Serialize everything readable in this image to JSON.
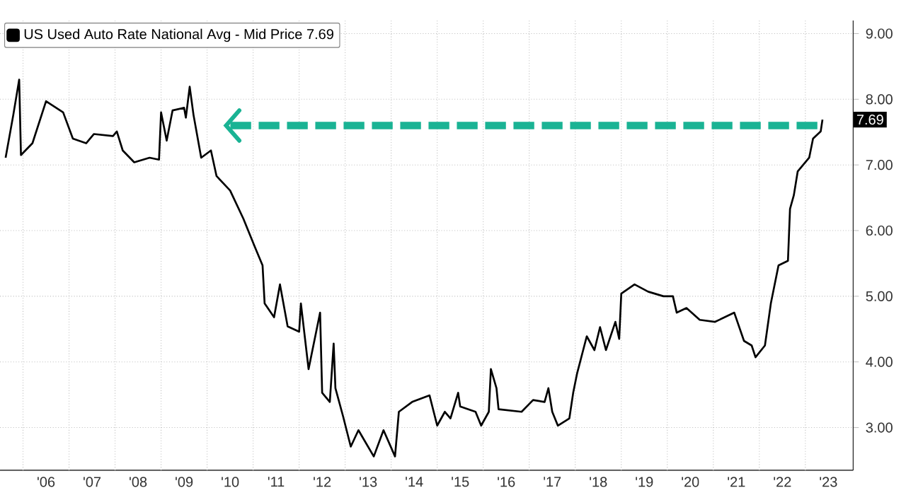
{
  "chart_data": {
    "type": "line",
    "x": [
      "2005-08-15",
      "2005-10-15",
      "2005-12-01",
      "2005-12-15",
      "2006-03-15",
      "2006-07-01",
      "2006-11-15",
      "2007-02-01",
      "2007-05-15",
      "2007-07-15",
      "2007-12-15",
      "2008-01-15",
      "2008-03-01",
      "2008-06-01",
      "2008-10-01",
      "2008-12-15",
      "2009-01-01",
      "2009-02-15",
      "2009-04-01",
      "2009-07-01",
      "2009-07-15",
      "2009-08-15",
      "2009-09-15",
      "2009-11-15",
      "2010-02-01",
      "2010-03-15",
      "2010-07-01",
      "2010-10-15",
      "2011-01-15",
      "2011-03-15",
      "2011-04-01",
      "2011-06-15",
      "2011-08-01",
      "2011-10-01",
      "2012-01-01",
      "2012-01-15",
      "2012-03-15",
      "2012-06-15",
      "2012-07-01",
      "2012-09-01",
      "2012-10-01",
      "2012-10-15",
      "2012-12-15",
      "2013-02-15",
      "2013-04-15",
      "2013-08-15",
      "2013-11-01",
      "2014-02-01",
      "2014-03-01",
      "2014-06-15",
      "2014-11-01",
      "2015-01-01",
      "2015-03-01",
      "2015-04-15",
      "2015-06-15",
      "2015-07-01",
      "2015-11-01",
      "2015-12-15",
      "2016-02-15",
      "2016-03-01",
      "2016-04-15",
      "2016-05-01",
      "2016-11-01",
      "2017-02-01",
      "2017-05-01",
      "2017-06-01",
      "2017-07-01",
      "2017-08-15",
      "2017-11-15",
      "2017-12-15",
      "2018-01-15",
      "2018-04-01",
      "2018-06-01",
      "2018-07-15",
      "2018-09-01",
      "2018-11-15",
      "2018-12-15",
      "2019-01-01",
      "2019-04-15",
      "2019-08-01",
      "2019-12-01",
      "2020-02-15",
      "2020-03-15",
      "2020-06-01",
      "2020-09-15",
      "2021-01-15",
      "2021-06-15",
      "2021-09-01",
      "2021-11-01",
      "2021-12-01",
      "2022-02-15",
      "2022-04-01",
      "2022-06-01",
      "2022-08-15",
      "2022-09-01",
      "2022-10-01",
      "2022-11-01",
      "2023-02-01",
      "2023-03-01",
      "2023-05-01",
      "2023-05-15"
    ],
    "series": [
      {
        "name": "US Used Auto Rate National Avg - Mid Price 7.69",
        "color": "#000000",
        "values": [
          7.11,
          7.76,
          8.3,
          7.15,
          7.33,
          7.97,
          7.8,
          7.4,
          7.33,
          7.47,
          7.44,
          7.51,
          7.22,
          7.04,
          7.11,
          7.08,
          7.8,
          7.37,
          7.83,
          7.87,
          7.72,
          8.19,
          7.76,
          7.11,
          7.22,
          6.83,
          6.61,
          6.18,
          5.75,
          5.47,
          4.89,
          4.68,
          5.18,
          4.54,
          4.46,
          4.89,
          3.89,
          4.75,
          3.53,
          3.39,
          4.28,
          3.6,
          3.17,
          2.71,
          2.96,
          2.56,
          2.96,
          2.56,
          3.24,
          3.39,
          3.49,
          3.03,
          3.24,
          3.14,
          3.53,
          3.32,
          3.24,
          3.03,
          3.24,
          3.89,
          3.6,
          3.28,
          3.24,
          3.42,
          3.39,
          3.6,
          3.24,
          3.03,
          3.14,
          3.53,
          3.82,
          4.39,
          4.18,
          4.53,
          4.18,
          4.61,
          4.35,
          5.04,
          5.18,
          5.07,
          5.0,
          5.0,
          4.75,
          4.82,
          4.64,
          4.61,
          4.75,
          4.32,
          4.25,
          4.07,
          4.25,
          4.89,
          5.47,
          5.54,
          6.33,
          6.54,
          6.9,
          7.11,
          7.4,
          7.51,
          7.69
        ]
      }
    ],
    "xlim": [
      "2005-07-01",
      "2024-01-15"
    ],
    "ylim": [
      2.35,
      9.2
    ],
    "xticks": [
      {
        "value": "2006-01-01",
        "label": null
      },
      {
        "value": "2006-07-01",
        "label": "'06"
      },
      {
        "value": "2007-01-01",
        "label": null
      },
      {
        "value": "2007-07-01",
        "label": "'07"
      },
      {
        "value": "2008-01-01",
        "label": null
      },
      {
        "value": "2008-07-01",
        "label": "'08"
      },
      {
        "value": "2009-01-01",
        "label": null
      },
      {
        "value": "2009-07-01",
        "label": "'09"
      },
      {
        "value": "2010-01-01",
        "label": null
      },
      {
        "value": "2010-07-01",
        "label": "'10"
      },
      {
        "value": "2011-01-01",
        "label": null
      },
      {
        "value": "2011-07-01",
        "label": "'11"
      },
      {
        "value": "2012-01-01",
        "label": null
      },
      {
        "value": "2012-07-01",
        "label": "'12"
      },
      {
        "value": "2013-01-01",
        "label": null
      },
      {
        "value": "2013-07-01",
        "label": "'13"
      },
      {
        "value": "2014-01-01",
        "label": null
      },
      {
        "value": "2014-07-01",
        "label": "'14"
      },
      {
        "value": "2015-01-01",
        "label": null
      },
      {
        "value": "2015-07-01",
        "label": "'15"
      },
      {
        "value": "2016-01-01",
        "label": null
      },
      {
        "value": "2016-07-01",
        "label": "'16"
      },
      {
        "value": "2017-01-01",
        "label": null
      },
      {
        "value": "2017-07-01",
        "label": "'17"
      },
      {
        "value": "2018-01-01",
        "label": null
      },
      {
        "value": "2018-07-01",
        "label": "'18"
      },
      {
        "value": "2019-01-01",
        "label": null
      },
      {
        "value": "2019-07-01",
        "label": "'19"
      },
      {
        "value": "2020-01-01",
        "label": null
      },
      {
        "value": "2020-07-01",
        "label": "'20"
      },
      {
        "value": "2021-01-01",
        "label": null
      },
      {
        "value": "2021-07-01",
        "label": "'21"
      },
      {
        "value": "2022-01-01",
        "label": null
      },
      {
        "value": "2022-07-01",
        "label": "'22"
      },
      {
        "value": "2023-01-01",
        "label": null
      },
      {
        "value": "2023-07-01",
        "label": "'23"
      }
    ],
    "yticks": [
      {
        "value": 3,
        "label": "3.00"
      },
      {
        "value": 4,
        "label": "4.00"
      },
      {
        "value": 5,
        "label": "5.00"
      },
      {
        "value": 6,
        "label": "6.00"
      },
      {
        "value": 7,
        "label": "7.00"
      },
      {
        "value": 8,
        "label": "8.00"
      },
      {
        "value": 9,
        "label": "9.00"
      }
    ],
    "grid": true,
    "legend": "top left",
    "ref_lines": [
      {
        "axis": "y",
        "value": 7.6,
        "color": "#1ab394",
        "line_style": "dashed"
      }
    ],
    "annotations": [
      {
        "text": "7.69",
        "y": 7.69
      }
    ]
  }
}
